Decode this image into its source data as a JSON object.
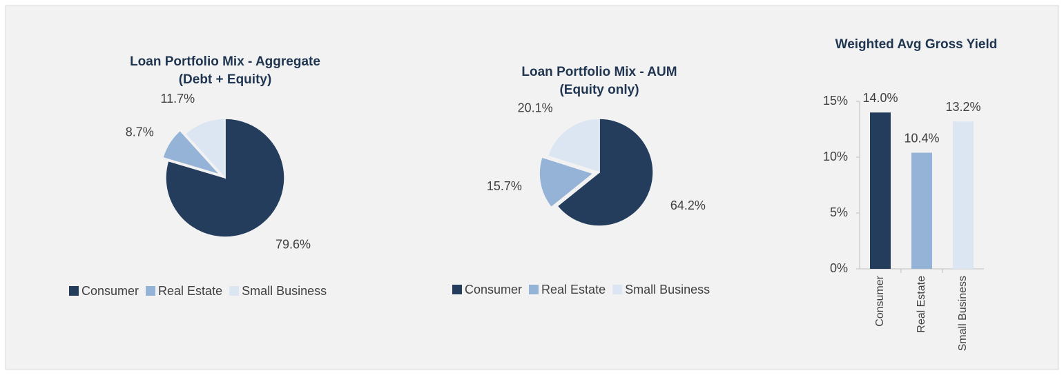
{
  "chart_data": [
    {
      "type": "pie",
      "title": [
        "Loan Portfolio Mix - Aggregate",
        "(Debt + Equity)"
      ],
      "categories": [
        "Consumer",
        "Real Estate",
        "Small Business"
      ],
      "values": [
        79.6,
        8.7,
        11.7
      ],
      "value_labels": [
        "79.6%",
        "8.7%",
        "11.7%"
      ],
      "colors": [
        "#243d5c",
        "#95b3d7",
        "#dce6f2"
      ],
      "legend": "bottom"
    },
    {
      "type": "pie",
      "title": [
        "Loan Portfolio Mix - AUM",
        "(Equity only)"
      ],
      "categories": [
        "Consumer",
        "Real Estate",
        "Small Business"
      ],
      "values": [
        64.2,
        15.7,
        20.1
      ],
      "value_labels": [
        "64.2%",
        "15.7%",
        "20.1%"
      ],
      "colors": [
        "#243d5c",
        "#95b3d7",
        "#dce6f2"
      ],
      "legend": "bottom"
    },
    {
      "type": "bar",
      "title": [
        "Weighted Avg Gross Yield"
      ],
      "categories": [
        "Consumer",
        "Real Estate",
        "Small Business"
      ],
      "values": [
        14.0,
        10.4,
        13.2
      ],
      "value_labels": [
        "14.0%",
        "10.4%",
        "13.2%"
      ],
      "colors": [
        "#243d5c",
        "#95b3d7",
        "#dce6f2"
      ],
      "ylim": [
        0,
        15
      ],
      "yticks": [
        {
          "value": 0,
          "label": "0%"
        },
        {
          "value": 5,
          "label": "5%"
        },
        {
          "value": 10,
          "label": "10%"
        },
        {
          "value": 15,
          "label": "15%"
        }
      ]
    }
  ]
}
